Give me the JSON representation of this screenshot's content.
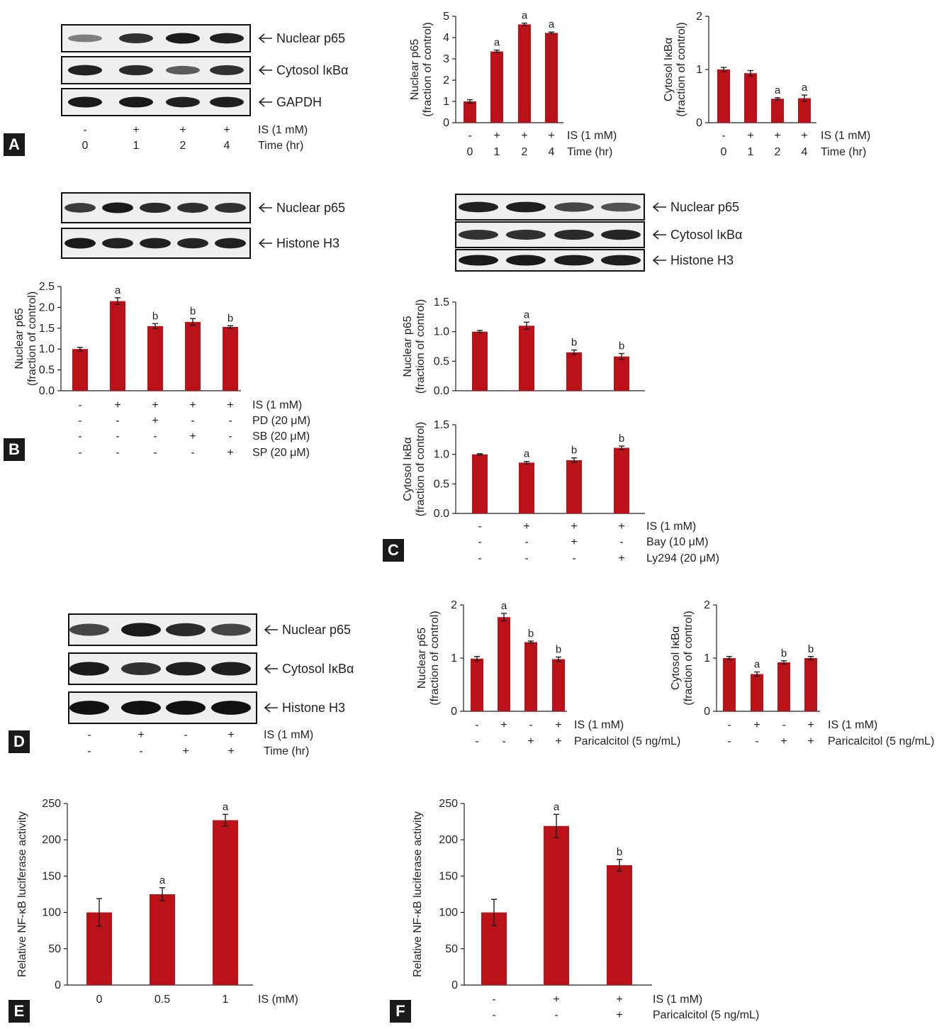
{
  "colors": {
    "bar": "#bb1219",
    "axis": "#231f20",
    "band": "#111111",
    "label_box": "#1a1a1a"
  },
  "panels": {
    "a": "A",
    "b": "B",
    "c": "C",
    "d": "D",
    "e": "E",
    "f": "F"
  },
  "blots": [
    {
      "panel": "A",
      "strips": [
        {
          "label": "Nuclear p65",
          "intensity": [
            0.35,
            0.8,
            0.95,
            0.9
          ]
        },
        {
          "label": "Cytosol IκBα",
          "intensity": [
            0.9,
            0.85,
            0.55,
            0.8
          ]
        },
        {
          "label": "GAPDH",
          "intensity": [
            0.95,
            0.95,
            0.9,
            0.92
          ]
        }
      ],
      "conditions": [
        {
          "label": "IS (1 mM)",
          "marks": [
            "-",
            "+",
            "+",
            "+"
          ]
        },
        {
          "label": "Time (hr)",
          "marks": [
            "0",
            "1",
            "2",
            "4"
          ]
        }
      ]
    },
    {
      "panel": "B",
      "strips": [
        {
          "label": "Nuclear p65",
          "intensity": [
            0.75,
            0.95,
            0.85,
            0.82,
            0.8
          ]
        },
        {
          "label": "Histone H3",
          "intensity": [
            0.95,
            0.9,
            0.9,
            0.88,
            0.9
          ]
        }
      ],
      "conditions": []
    },
    {
      "panel": "C",
      "strips": [
        {
          "label": "Nuclear p65",
          "intensity": [
            0.9,
            0.92,
            0.7,
            0.6
          ]
        },
        {
          "label": "Cytosol IκBα",
          "intensity": [
            0.8,
            0.82,
            0.85,
            0.88
          ]
        },
        {
          "label": "Histone H3",
          "intensity": [
            0.95,
            0.95,
            0.92,
            0.92
          ]
        }
      ],
      "conditions": []
    },
    {
      "panel": "D",
      "strips": [
        {
          "label": "Nuclear p65",
          "intensity": [
            0.7,
            0.95,
            0.85,
            0.7
          ]
        },
        {
          "label": "Cytosol IκBα",
          "intensity": [
            0.95,
            0.8,
            0.92,
            0.92
          ]
        },
        {
          "label": "Histone H3",
          "intensity": [
            1.0,
            1.0,
            1.0,
            1.0
          ]
        }
      ],
      "conditions": [
        {
          "label": "IS (1 mM)",
          "marks": [
            "-",
            "+",
            "-",
            "+"
          ]
        },
        {
          "label": "Time (hr)",
          "marks": [
            "-",
            "-",
            "+",
            "+"
          ]
        }
      ]
    }
  ],
  "chart_data": [
    {
      "id": "A-p65",
      "type": "bar",
      "ylabel": [
        "Nuclear p65",
        "(fraction of control)"
      ],
      "ylim": [
        0,
        5
      ],
      "yticks": [
        "0",
        "1",
        "2",
        "3",
        "4",
        "5"
      ],
      "values": [
        1.0,
        3.35,
        4.62,
        4.22
      ],
      "errors": [
        0.08,
        0.06,
        0.06,
        0.04
      ],
      "sig": [
        "",
        "a",
        "a",
        "a"
      ],
      "conditions": [
        {
          "label": "IS (1 mM)",
          "marks": [
            "-",
            "+",
            "+",
            "+"
          ]
        },
        {
          "label": "Time (hr)",
          "marks": [
            "0",
            "1",
            "2",
            "4"
          ]
        }
      ]
    },
    {
      "id": "A-ikba",
      "type": "bar",
      "ylabel": [
        "Cytosol IκBα",
        "(fraction of control)"
      ],
      "ylim": [
        0,
        2
      ],
      "yticks": [
        "0",
        "1",
        "2"
      ],
      "values": [
        1.0,
        0.93,
        0.45,
        0.46
      ],
      "errors": [
        0.04,
        0.05,
        0.02,
        0.06
      ],
      "sig": [
        "",
        "",
        "a",
        "a"
      ],
      "conditions": [
        {
          "label": "IS (1 mM)",
          "marks": [
            "-",
            "+",
            "+",
            "+"
          ]
        },
        {
          "label": "Time (hr)",
          "marks": [
            "0",
            "1",
            "2",
            "4"
          ]
        }
      ]
    },
    {
      "id": "B-p65",
      "type": "bar",
      "ylabel": [
        "Nuclear p65",
        "(fraction of control)"
      ],
      "ylim": [
        0,
        2.5
      ],
      "yticks": [
        "0.0",
        "0.5",
        "1.0",
        "1.5",
        "2.0",
        "2.5"
      ],
      "values": [
        1.0,
        2.15,
        1.55,
        1.65,
        1.53
      ],
      "errors": [
        0.04,
        0.08,
        0.06,
        0.08,
        0.03
      ],
      "sig": [
        "",
        "a",
        "b",
        "b",
        "b"
      ],
      "conditions": [
        {
          "label": "IS (1 mM)",
          "marks": [
            "-",
            "+",
            "+",
            "+",
            "+"
          ]
        },
        {
          "label": "PD (20 μM)",
          "marks": [
            "-",
            "-",
            "+",
            "-",
            "-"
          ]
        },
        {
          "label": "SB (20 μM)",
          "marks": [
            "-",
            "-",
            "-",
            "+",
            "-"
          ]
        },
        {
          "label": "SP (20 μM)",
          "marks": [
            "-",
            "-",
            "-",
            "-",
            "+"
          ]
        }
      ]
    },
    {
      "id": "C-p65",
      "type": "bar",
      "ylabel": [
        "Nuclear p65",
        "(fraction of control)"
      ],
      "ylim": [
        0,
        1.5
      ],
      "yticks": [
        "0.0",
        "0.5",
        "1.0",
        "1.5"
      ],
      "values": [
        1.0,
        1.1,
        0.65,
        0.58
      ],
      "errors": [
        0.02,
        0.06,
        0.04,
        0.05
      ],
      "sig": [
        "",
        "a",
        "b",
        "b"
      ],
      "conditions": []
    },
    {
      "id": "C-ikba",
      "type": "bar",
      "ylabel": [
        "Cytosol IκBα",
        "(fraction of control)"
      ],
      "ylim": [
        0,
        1.5
      ],
      "yticks": [
        "0.0",
        "0.5",
        "1.0",
        "1.5"
      ],
      "values": [
        1.0,
        0.86,
        0.9,
        1.11
      ],
      "errors": [
        0.01,
        0.02,
        0.04,
        0.03
      ],
      "sig": [
        "",
        "a",
        "b",
        "b"
      ],
      "conditions": [
        {
          "label": "IS (1 mM)",
          "marks": [
            "-",
            "+",
            "+",
            "+"
          ]
        },
        {
          "label": "Bay (10 μM)",
          "marks": [
            "-",
            "-",
            "+",
            "-"
          ]
        },
        {
          "label": "Ly294 (20 μM)",
          "marks": [
            "-",
            "-",
            "-",
            "+"
          ]
        }
      ]
    },
    {
      "id": "D-p65",
      "type": "bar",
      "ylabel": [
        "Nuclear p65",
        "(fraction of control)"
      ],
      "ylim": [
        0,
        2
      ],
      "yticks": [
        "0",
        "1",
        "2"
      ],
      "values": [
        0.99,
        1.77,
        1.3,
        0.98
      ],
      "errors": [
        0.04,
        0.07,
        0.02,
        0.04
      ],
      "sig": [
        "",
        "a",
        "b",
        "b"
      ],
      "conditions": [
        {
          "label": "IS (1 mM)",
          "marks": [
            "-",
            "+",
            "-",
            "+"
          ]
        },
        {
          "label": "Paricalcitol (5 ng/mL)",
          "marks": [
            "-",
            "-",
            "+",
            "+"
          ]
        }
      ]
    },
    {
      "id": "D-ikba",
      "type": "bar",
      "ylabel": [
        "Cytosol IκBα",
        "(fraction of control)"
      ],
      "ylim": [
        0,
        2
      ],
      "yticks": [
        "0",
        "1",
        "2"
      ],
      "values": [
        1.0,
        0.7,
        0.92,
        1.0
      ],
      "errors": [
        0.03,
        0.04,
        0.03,
        0.03
      ],
      "sig": [
        "",
        "a",
        "b",
        "b"
      ],
      "conditions": [
        {
          "label": "IS (1 mM)",
          "marks": [
            "-",
            "+",
            "-",
            "+"
          ]
        },
        {
          "label": "Paricalcitol (5 ng/mL)",
          "marks": [
            "-",
            "-",
            "+",
            "+"
          ]
        }
      ]
    },
    {
      "id": "E-luc",
      "type": "bar",
      "ylabel": [
        "Relative NF-κB luciferase activity"
      ],
      "ylim": [
        0,
        250
      ],
      "yticks": [
        "0",
        "50",
        "100",
        "150",
        "200",
        "250"
      ],
      "values": [
        100,
        125,
        227
      ],
      "errors": [
        19,
        9,
        8
      ],
      "sig": [
        "",
        "a",
        "a"
      ],
      "conditions": [
        {
          "label": "IS (mM)",
          "marks": [
            "0",
            "0.5",
            "1"
          ]
        }
      ]
    },
    {
      "id": "F-luc",
      "type": "bar",
      "ylabel": [
        "Relative NF-κB luciferase activity"
      ],
      "ylim": [
        0,
        250
      ],
      "yticks": [
        "0",
        "50",
        "100",
        "150",
        "200",
        "250"
      ],
      "values": [
        100,
        219,
        165
      ],
      "errors": [
        18,
        16,
        8
      ],
      "sig": [
        "",
        "a",
        "b"
      ],
      "conditions": [
        {
          "label": "IS (1 mM)",
          "marks": [
            "-",
            "+",
            "+"
          ]
        },
        {
          "label": "Paricalcitol (5 ng/mL)",
          "marks": [
            "-",
            "-",
            "+"
          ]
        }
      ]
    }
  ]
}
